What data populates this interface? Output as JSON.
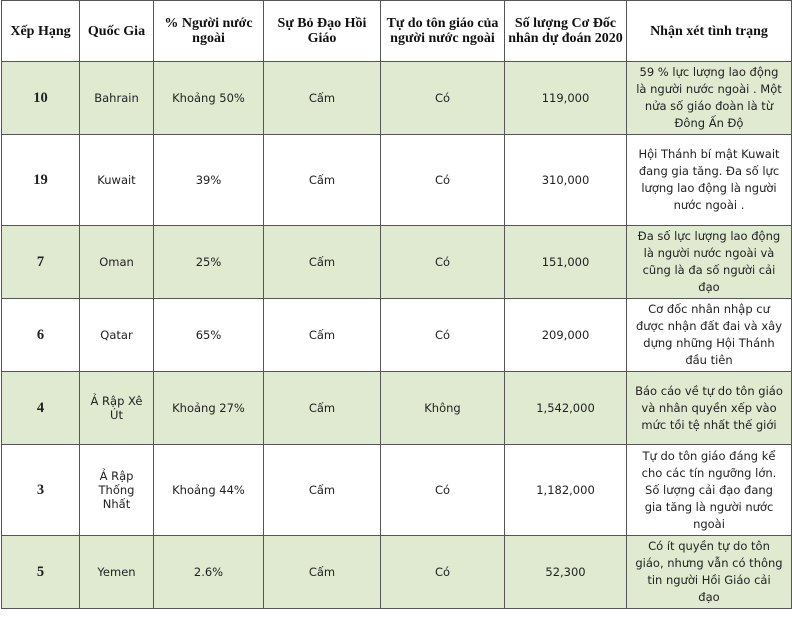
{
  "table": {
    "headers": [
      "Xếp Hạng",
      "Quốc Gia",
      "% Người nước ngoài",
      "Sự Bỏ Đạo Hồi Giáo",
      "Tự do tôn giáo của người nước ngoài",
      "Số lượng Cơ Đốc nhân dự đoán 2020",
      "Nhận xét tình trạng"
    ],
    "rows": [
      {
        "rank": "10",
        "country": "Bahrain",
        "foreign_pct": "Khoảng 50%",
        "apostasy": "Cấm",
        "freedom": "Có",
        "christians": "119,000",
        "note": "59 % lực lượng lao động là người nước ngoài . Một nửa số giáo đoàn là từ Đông Ấn Độ"
      },
      {
        "rank": "19",
        "country": "Kuwait",
        "foreign_pct": "39%",
        "apostasy": "Cấm",
        "freedom": "Có",
        "christians": "310,000",
        "note": "Hội Thánh bí mật Kuwait đang gia tăng. Đa số lực lượng lao động là người nước ngoài ."
      },
      {
        "rank": "7",
        "country": "Oman",
        "foreign_pct": "25%",
        "apostasy": "Cấm",
        "freedom": "Có",
        "christians": "151,000",
        "note": "Đa số lực lượng lao động là người nước ngoài và cũng là đa số người cải đạo"
      },
      {
        "rank": "6",
        "country": "Qatar",
        "foreign_pct": "65%",
        "apostasy": "Cấm",
        "freedom": "Có",
        "christians": "209,000",
        "note": "Cơ đốc nhân nhập cư được nhận đất đai và xây dựng những Hội Thánh đầu tiên"
      },
      {
        "rank": "4",
        "country": "Ả Rập Xê Út",
        "foreign_pct": "Khoảng 27%",
        "apostasy": "Cấm",
        "freedom": "Không",
        "christians": "1,542,000",
        "note": "Báo cáo về tự do tôn giáo và nhân quyền xếp vào mức tồi tệ nhất thế giới"
      },
      {
        "rank": "3",
        "country": "Ả Rập Thống Nhất",
        "foreign_pct": "Khoảng 44%",
        "apostasy": "Cấm",
        "freedom": "Có",
        "christians": "1,182,000",
        "note": "Tự do tôn giáo đáng kể cho các tín ngưỡng lớn. Số lượng cải đạo đang gia tăng là người nước ngoài"
      },
      {
        "rank": "5",
        "country": "Yemen",
        "foreign_pct": "2.6%",
        "apostasy": "Cấm",
        "freedom": "Có",
        "christians": "52,300",
        "note": "Có ít quyền tự do tôn giáo, nhưng vẫn có thông tin người Hồi Giáo cải đạo"
      }
    ]
  }
}
